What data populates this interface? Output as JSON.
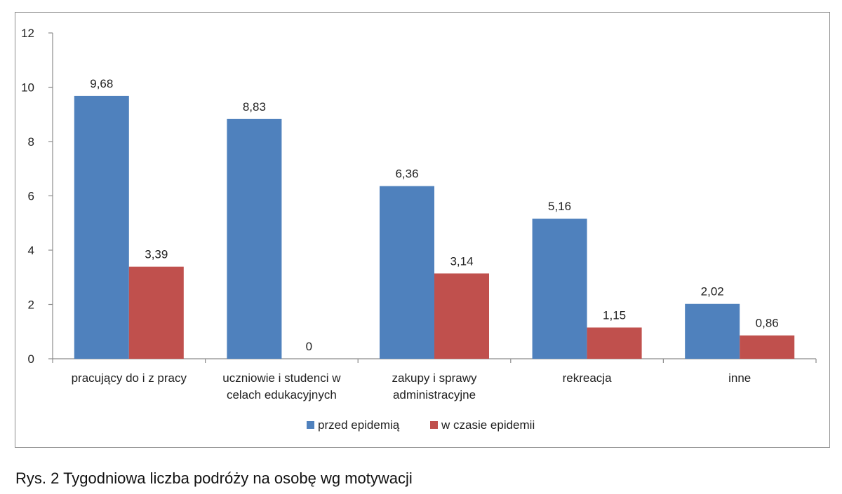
{
  "chart_data": {
    "type": "bar",
    "categories": [
      [
        "pracujący do i z pracy"
      ],
      [
        "uczniowie i studenci w",
        "celach edukacyjnych"
      ],
      [
        "zakupy i sprawy",
        "administracyjne"
      ],
      [
        "rekreacja"
      ],
      [
        "inne"
      ]
    ],
    "series": [
      {
        "name": "przed epidemią",
        "color": "#4f81bd",
        "values": [
          9.68,
          8.83,
          6.36,
          5.16,
          2.02
        ],
        "labels": [
          "9,68",
          "8,83",
          "6,36",
          "5,16",
          "2,02"
        ]
      },
      {
        "name": "w czasie epidemii",
        "color": "#c0504d",
        "values": [
          3.39,
          0,
          3.14,
          1.15,
          0.86
        ],
        "labels": [
          "3,39",
          "0",
          "3,14",
          "1,15",
          "0,86"
        ]
      }
    ],
    "ylim": [
      0,
      12
    ],
    "yticks": [
      0,
      2,
      4,
      6,
      8,
      10,
      12
    ],
    "grid": false,
    "legend_position": "bottom",
    "xlabel": "",
    "ylabel": ""
  },
  "caption": "Rys. 2 Tygodniowa liczba podróży na osobę wg motywacji"
}
